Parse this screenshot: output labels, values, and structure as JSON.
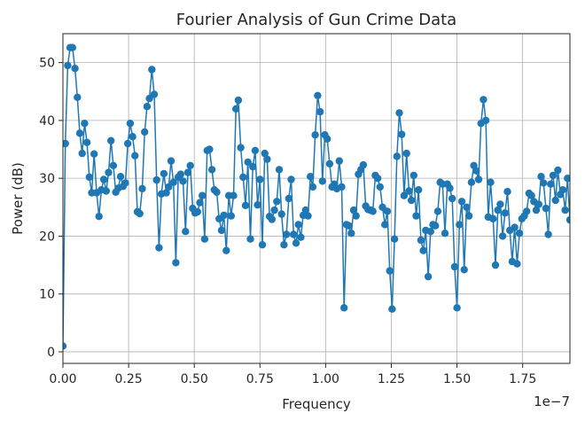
{
  "chart_data": {
    "type": "line",
    "title": "Fourier Analysis of Gun Crime Data",
    "xlabel": "Frequency",
    "ylabel": "Power (dB)",
    "x_offset_label": "1e−7",
    "xlim": [
      0,
      1.93
    ],
    "ylim": [
      -2,
      55
    ],
    "xticks": [
      0.0,
      0.25,
      0.5,
      0.75,
      1.0,
      1.25,
      1.5,
      1.75
    ],
    "xtick_labels": [
      "0.00",
      "0.25",
      "0.50",
      "0.75",
      "1.00",
      "1.25",
      "1.50",
      "1.75"
    ],
    "yticks": [
      0,
      10,
      20,
      30,
      40,
      50
    ],
    "ytick_labels": [
      "0",
      "10",
      "20",
      "30",
      "40",
      "50"
    ],
    "grid": true,
    "marker": "circle",
    "color": "#1f77b4",
    "series": [
      {
        "values": [
          1.0,
          36.0,
          49.5,
          52.6,
          52.6,
          49.0,
          44.0,
          37.8,
          34.3,
          39.5,
          36.2,
          30.2,
          27.5,
          34.2,
          27.5,
          23.4,
          28.0,
          29.8,
          27.8,
          31.0,
          36.5,
          32.2,
          27.6,
          28.3,
          30.3,
          28.6,
          29.2,
          36.0,
          39.5,
          37.2,
          33.9,
          24.2,
          23.9,
          28.2,
          38.0,
          42.4,
          43.8,
          48.8,
          44.5,
          29.7,
          18.0,
          27.3,
          30.8,
          27.5,
          28.5,
          33.0,
          29.3,
          15.4,
          30.2,
          30.7,
          29.5,
          20.8,
          31.0,
          32.2,
          24.8,
          24.0,
          24.2,
          25.8,
          27.0,
          19.5,
          34.8,
          35.0,
          31.5,
          28.0,
          27.6,
          23.0,
          21.0,
          23.6,
          17.5,
          27.0,
          23.5,
          27.0,
          42.0,
          43.5,
          35.3,
          30.2,
          25.3,
          32.8,
          19.5,
          32.0,
          34.8,
          25.4,
          29.8,
          18.5,
          34.3,
          33.3,
          23.4,
          22.9,
          24.5,
          26.0,
          31.5,
          23.8,
          18.5,
          20.3,
          26.5,
          29.8,
          20.3,
          18.8,
          22.0,
          19.8,
          23.6,
          24.5,
          23.5,
          30.3,
          28.5,
          37.5,
          44.3,
          41.5,
          29.5,
          37.5,
          36.8,
          32.5,
          28.5,
          29.0,
          28.2,
          33.0,
          28.5,
          7.6,
          22.0,
          21.8,
          20.5,
          24.5,
          23.5,
          30.7,
          31.5,
          32.3,
          25.2,
          24.6,
          24.5,
          24.3,
          30.5,
          30.0,
          28.5,
          25.0,
          22.0,
          24.3,
          14.0,
          7.4,
          19.5,
          33.8,
          41.3,
          37.6,
          27.0,
          34.3,
          27.8,
          26.2,
          30.5,
          23.5,
          28.0,
          19.3,
          17.5,
          21.0,
          13.0,
          20.8,
          22.0,
          21.8,
          24.3,
          29.3,
          29.0,
          20.5,
          29.0,
          28.3,
          26.5,
          14.7,
          7.6,
          22.0,
          26.0,
          14.2,
          25.0,
          23.5,
          29.3,
          32.2,
          31.3,
          29.8,
          39.5,
          43.6,
          40.0,
          23.3,
          29.3,
          23.0,
          15.0,
          24.5,
          25.5,
          20.0,
          24.0,
          27.7,
          21.0,
          15.6,
          21.5,
          15.2,
          20.5,
          23.0,
          23.5,
          24.3,
          27.4,
          27.0,
          26.0,
          24.5,
          25.5,
          30.3,
          29.2,
          24.8,
          20.3,
          29.0,
          30.5,
          26.2,
          31.4,
          27.2,
          28.0,
          24.5,
          30.0,
          22.8
        ]
      }
    ]
  }
}
